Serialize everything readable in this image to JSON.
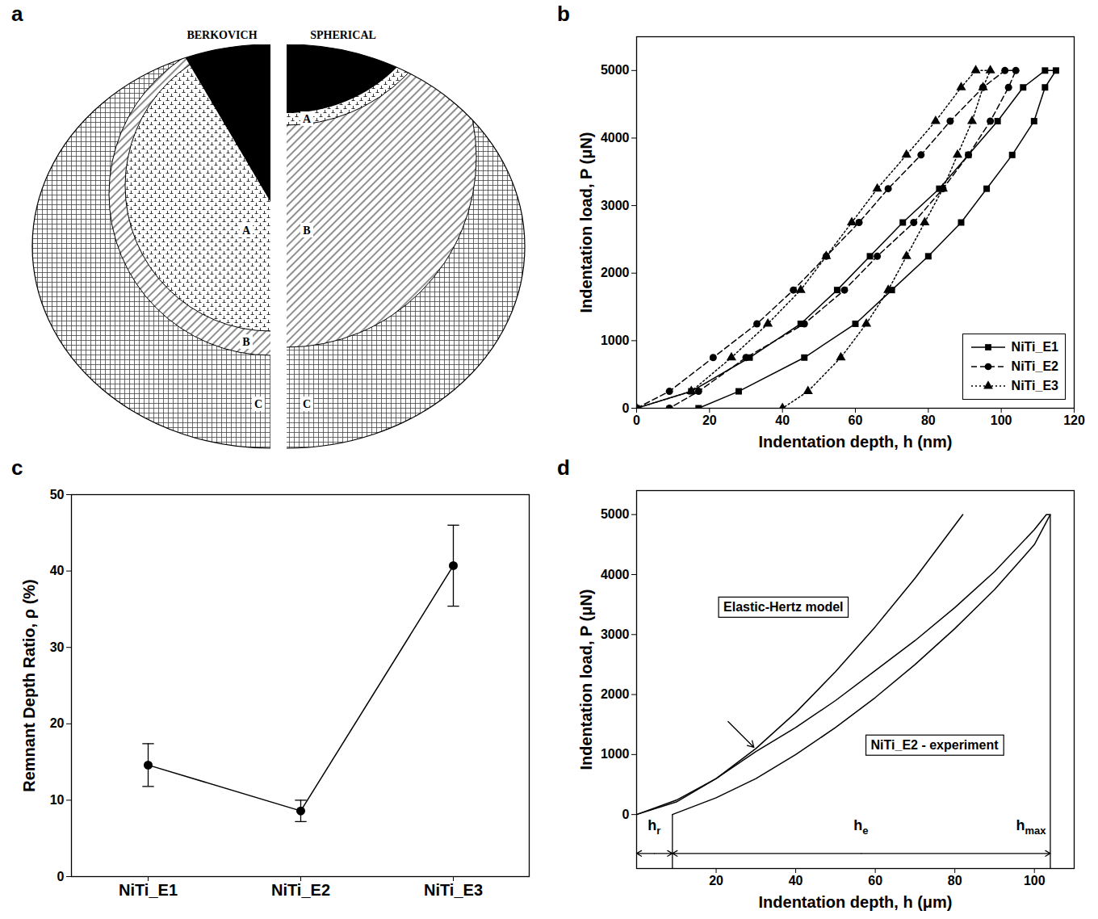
{
  "diagram": {
    "panel": "a",
    "left_title": "BERKOVICH",
    "right_title": "SPHERICAL",
    "left_zones": [
      "A",
      "B",
      "C"
    ],
    "right_zones": [
      "A",
      "B",
      "C"
    ]
  },
  "chart_data": [
    {
      "panel": "b",
      "type": "line",
      "xlabel": "Indentation depth, h (nm)",
      "ylabel": "Indentation load, P (μN)",
      "xlim": [
        0,
        120
      ],
      "xticks": [
        0,
        20,
        40,
        60,
        80,
        100,
        120
      ],
      "ylim": [
        0,
        5500
      ],
      "yticks": [
        0,
        1000,
        2000,
        3000,
        4000,
        5000
      ],
      "legend": "bottom-right",
      "series": [
        {
          "name": "NiTi_E1",
          "color": "#000000",
          "marker": "square",
          "line_style": "solid",
          "x": [
            0,
            15,
            31,
            45,
            55,
            64,
            73,
            83,
            91,
            99,
            106,
            112,
            115,
            112,
            109,
            103,
            96,
            89,
            80,
            70,
            60,
            46,
            28,
            17
          ],
          "values": [
            0,
            250,
            750,
            1250,
            1750,
            2250,
            2750,
            3250,
            3750,
            4250,
            4750,
            5000,
            5000,
            4750,
            4250,
            3750,
            3250,
            2750,
            2250,
            1750,
            1250,
            750,
            250,
            0
          ]
        },
        {
          "name": "NiTi_E2",
          "color": "#000000",
          "marker": "circle",
          "line_style": "dashed",
          "x": [
            0,
            9,
            21,
            33,
            43,
            52,
            61,
            69,
            78,
            86,
            95,
            101,
            104,
            102,
            97,
            91,
            84,
            76,
            66,
            57,
            46,
            30,
            17,
            9
          ],
          "values": [
            0,
            250,
            750,
            1250,
            1750,
            2250,
            2750,
            3250,
            3750,
            4250,
            4750,
            5000,
            5000,
            4750,
            4250,
            3750,
            3250,
            2750,
            2250,
            1750,
            1250,
            750,
            250,
            0
          ]
        },
        {
          "name": "NiTi_E3",
          "color": "#000000",
          "marker": "triangle",
          "line_style": "dotted",
          "x": [
            0,
            15,
            26,
            36,
            45,
            52,
            59,
            66,
            74,
            82,
            89,
            93,
            97,
            95,
            92,
            88,
            84,
            79,
            74,
            69,
            63,
            56,
            47,
            40
          ],
          "values": [
            0,
            250,
            750,
            1250,
            1750,
            2250,
            2750,
            3250,
            3750,
            4250,
            4750,
            5000,
            5000,
            4750,
            4250,
            3750,
            3250,
            2750,
            2250,
            1750,
            1250,
            750,
            250,
            0
          ]
        }
      ]
    },
    {
      "panel": "c",
      "type": "line",
      "ylabel": "Remnant Depth Ratio, ρ (%)",
      "categories": [
        "NiTi_E1",
        "NiTi_E2",
        "NiTi_E3"
      ],
      "values": [
        14.6,
        8.6,
        40.7
      ],
      "errors": [
        2.8,
        1.4,
        5.3
      ],
      "color": "#000000",
      "marker": "circle",
      "line_style": "solid",
      "ylim": [
        0,
        50
      ],
      "yticks": [
        0,
        10,
        20,
        30,
        40,
        50
      ]
    },
    {
      "panel": "d",
      "type": "line",
      "xlabel": "Indentation depth, h (μm)",
      "ylabel": "Indentation load, P (μN)",
      "xlim": [
        0,
        110
      ],
      "xticks": [
        20,
        40,
        60,
        80,
        100
      ],
      "ylim": [
        -900,
        5400
      ],
      "yticks": [
        0,
        1000,
        2000,
        3000,
        4000,
        5000
      ],
      "series": [
        {
          "name": "Elastic-Hertz model",
          "color": "#000000",
          "line_style": "solid",
          "label_x": 37,
          "label_y": 3450,
          "x": [
            0,
            10,
            20,
            30,
            40,
            50,
            60,
            70,
            82
          ],
          "values": [
            0,
            210,
            600,
            1100,
            1700,
            2380,
            3130,
            3940,
            5000
          ]
        },
        {
          "name": "NiTi_E2 - experiment",
          "color": "#000000",
          "line_style": "solid",
          "label_x": 75,
          "label_y": 1150,
          "x": [
            0,
            10,
            20,
            30,
            40,
            50,
            60,
            70,
            80,
            90,
            100,
            103,
            104,
            100,
            90,
            80,
            70,
            60,
            50,
            40,
            30,
            20,
            9
          ],
          "values": [
            0,
            240,
            600,
            1050,
            1450,
            1900,
            2400,
            2900,
            3450,
            4050,
            4750,
            5000,
            5000,
            4500,
            3750,
            3100,
            2500,
            1950,
            1450,
            1000,
            600,
            280,
            0
          ]
        }
      ],
      "annotations": [
        {
          "arrow_from": [
            23,
            1550
          ],
          "arrow_to": [
            29.5,
            1120
          ]
        }
      ],
      "spans": [
        {
          "label": {
            "base": "h",
            "sub": "r"
          },
          "from": 0,
          "to": 9
        },
        {
          "label": {
            "base": "h",
            "sub": "e"
          },
          "from": 9,
          "to": 104
        }
      ],
      "h_max": {
        "label": {
          "base": "h",
          "sub": "max"
        },
        "x": 104
      }
    }
  ]
}
